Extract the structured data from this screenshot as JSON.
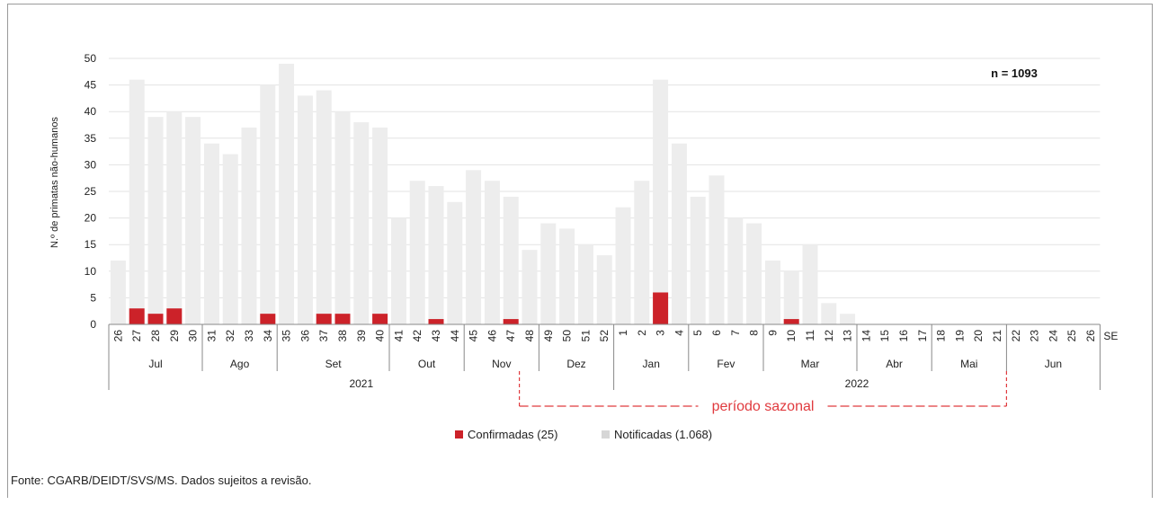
{
  "chart_data": {
    "type": "bar",
    "stacked": true,
    "title": "",
    "ylabel": "N.º de primatas não-humanos",
    "xlabel": "SE",
    "ylim": [
      0,
      50
    ],
    "yticks": [
      0,
      5,
      10,
      15,
      20,
      25,
      30,
      35,
      40,
      45,
      50
    ],
    "grid": "horizontal",
    "annotation": "n = 1093",
    "seasonal_label": "período sazonal",
    "weeks": [
      "26",
      "27",
      "28",
      "29",
      "30",
      "31",
      "32",
      "33",
      "34",
      "35",
      "36",
      "37",
      "38",
      "39",
      "40",
      "41",
      "42",
      "43",
      "44",
      "45",
      "46",
      "47",
      "48",
      "49",
      "50",
      "51",
      "52",
      "1",
      "2",
      "3",
      "4",
      "5",
      "6",
      "7",
      "8",
      "9",
      "10",
      "11",
      "12",
      "13",
      "14",
      "15",
      "16",
      "17",
      "18",
      "19",
      "20",
      "21",
      "22",
      "23",
      "24",
      "25",
      "26"
    ],
    "months": [
      {
        "label": "Jul",
        "span": 5
      },
      {
        "label": "Ago",
        "span": 4
      },
      {
        "label": "Set",
        "span": 6
      },
      {
        "label": "Out",
        "span": 4
      },
      {
        "label": "Nov",
        "span": 4
      },
      {
        "label": "Dez",
        "span": 4
      },
      {
        "label": "Jan",
        "span": 4
      },
      {
        "label": "Fev",
        "span": 4
      },
      {
        "label": "Mar",
        "span": 5
      },
      {
        "label": "Abr",
        "span": 4
      },
      {
        "label": "Mai",
        "span": 4
      },
      {
        "label": "Jun",
        "span": 5
      }
    ],
    "years": [
      {
        "label": "2021",
        "span": 27
      },
      {
        "label": "2022",
        "span": 26
      }
    ],
    "seasonal_period": {
      "from_week_index": 22,
      "to_week_index": 47
    },
    "legend_position": "bottom",
    "series": [
      {
        "name": "Confirmadas (25)",
        "color": "#cc2229",
        "values": [
          0,
          3,
          2,
          3,
          0,
          0,
          0,
          0,
          2,
          0,
          0,
          2,
          2,
          0,
          2,
          0,
          0,
          1,
          0,
          0,
          0,
          1,
          0,
          0,
          0,
          0,
          0,
          0,
          0,
          6,
          0,
          0,
          0,
          0,
          0,
          0,
          1,
          0,
          0,
          0,
          0,
          0,
          0,
          0,
          0,
          0,
          0,
          0,
          0,
          0,
          0,
          0,
          0
        ]
      },
      {
        "name": "Notificadas (1.068)",
        "color": "#ededed",
        "total_values": [
          12,
          46,
          39,
          40,
          39,
          34,
          32,
          37,
          45,
          49,
          43,
          44,
          40,
          38,
          37,
          20,
          27,
          26,
          23,
          29,
          27,
          24,
          14,
          19,
          18,
          15,
          13,
          22,
          27,
          46,
          34,
          24,
          28,
          20,
          19,
          12,
          10,
          15,
          4,
          2,
          0,
          0,
          0,
          0,
          0,
          0,
          0,
          0,
          0,
          0,
          0,
          0,
          0
        ]
      }
    ]
  },
  "source": "Fonte: CGARB/DEIDT/SVS/MS. Dados sujeitos a revisão."
}
